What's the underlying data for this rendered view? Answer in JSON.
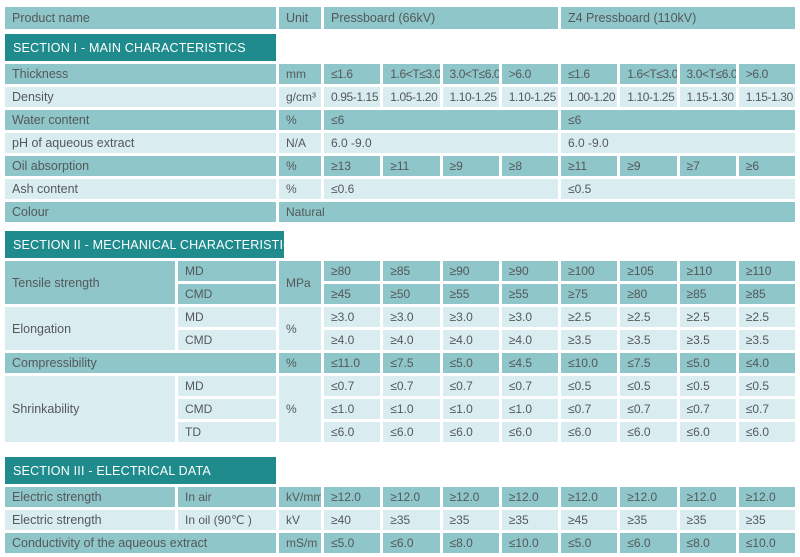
{
  "colors": {
    "section_bar": "#1f8b8d",
    "row_teal": "#8fc6c9",
    "row_light": "#d9edf1",
    "text": "#54585a",
    "section_text": "#ffffff"
  },
  "table": {
    "header": {
      "product": "Product name",
      "unit": "Unit",
      "group1": "Pressboard (66kV)",
      "group2": "Z4 Pressboard (110kV)"
    },
    "section1": {
      "title": "SECTION I - MAIN CHARACTERISTICS",
      "rows": {
        "thickness": {
          "label": "Thickness",
          "unit": "mm",
          "values": [
            "≤1.6",
            "1.6<T≤3.0",
            "3.0<T≤6.0",
            ">6.0",
            "≤1.6",
            "1.6<T≤3.0",
            "3.0<T≤6.0",
            ">6.0"
          ]
        },
        "density": {
          "label": "Density",
          "unit": "g/cm³",
          "values": [
            "0.95-1.15",
            "1.05-1.20",
            "1.10-1.25",
            "1.10-1.25",
            "1.00-1.20",
            "1.10-1.25",
            "1.15-1.30",
            "1.15-1.30"
          ]
        },
        "water": {
          "label": "Water content",
          "unit": "%",
          "values": [
            "≤6",
            "≤6"
          ]
        },
        "ph": {
          "label": "pH of aqueous extract",
          "unit": "N/A",
          "values": [
            "6.0 -9.0",
            "6.0 -9.0"
          ]
        },
        "oil_absorption": {
          "label": "Oil absorption",
          "unit": "%",
          "values": [
            "≥13",
            "≥11",
            "≥9",
            "≥8",
            "≥11",
            "≥9",
            "≥7",
            "≥6"
          ]
        },
        "ash": {
          "label": "Ash content",
          "unit": "%",
          "values": [
            "≤0.6",
            "≤0.5"
          ]
        },
        "colour": {
          "label": "Colour",
          "value": "Natural"
        }
      }
    },
    "section2": {
      "title": "SECTION II - MECHANICAL CHARACTERISTICS",
      "rows": {
        "tensile": {
          "label": "Tensile strength",
          "unit": "MPa",
          "sub1": "MD",
          "sub2": "CMD",
          "md": [
            "≥80",
            "≥85",
            "≥90",
            "≥90",
            "≥100",
            "≥105",
            "≥110",
            "≥110"
          ],
          "cmd": [
            "≥45",
            "≥50",
            "≥55",
            "≥55",
            "≥75",
            "≥80",
            "≥85",
            "≥85"
          ]
        },
        "elongation": {
          "label": "Elongation",
          "unit": "%",
          "sub1": "MD",
          "sub2": "CMD",
          "md": [
            "≥3.0",
            "≥3.0",
            "≥3.0",
            "≥3.0",
            "≥2.5",
            "≥2.5",
            "≥2.5",
            "≥2.5"
          ],
          "cmd": [
            "≥4.0",
            "≥4.0",
            "≥4.0",
            "≥4.0",
            "≥3.5",
            "≥3.5",
            "≥3.5",
            "≥3.5"
          ]
        },
        "compressibility": {
          "label": "Compressibility",
          "unit": "%",
          "values": [
            "≤11.0",
            "≤7.5",
            "≤5.0",
            "≤4.5",
            "≤10.0",
            "≤7.5",
            "≤5.0",
            "≤4.0"
          ]
        },
        "shrinkability": {
          "label": "Shrinkability",
          "unit": "%",
          "sub1": "MD",
          "sub2": "CMD",
          "sub3": "TD",
          "md": [
            "≤0.7",
            "≤0.7",
            "≤0.7",
            "≤0.7",
            "≤0.5",
            "≤0.5",
            "≤0.5",
            "≤0.5"
          ],
          "cmd": [
            "≤1.0",
            "≤1.0",
            "≤1.0",
            "≤1.0",
            "≤0.7",
            "≤0.7",
            "≤0.7",
            "≤0.7"
          ],
          "td": [
            "≤6.0",
            "≤6.0",
            "≤6.0",
            "≤6.0",
            "≤6.0",
            "≤6.0",
            "≤6.0",
            "≤6.0"
          ]
        }
      }
    },
    "section3": {
      "title": "SECTION III - ELECTRICAL DATA",
      "rows": {
        "strength_air": {
          "label": "Electric strength",
          "sub": "In air",
          "unit": "kV/mm",
          "values": [
            "≥12.0",
            "≥12.0",
            "≥12.0",
            "≥12.0",
            "≥12.0",
            "≥12.0",
            "≥12.0",
            "≥12.0"
          ]
        },
        "strength_oil": {
          "label": "Electric strength",
          "sub": "In oil (90℃ )",
          "unit": "kV",
          "values": [
            "≥40",
            "≥35",
            "≥35",
            "≥35",
            "≥45",
            "≥35",
            "≥35",
            "≥35"
          ]
        },
        "conductivity": {
          "label": "Conductivity of the aqueous extract",
          "unit": "mS/m",
          "values": [
            "≤5.0",
            "≤6.0",
            "≤8.0",
            "≤10.0",
            "≤5.0",
            "≤6.0",
            "≤8.0",
            "≤10.0"
          ]
        }
      }
    }
  }
}
